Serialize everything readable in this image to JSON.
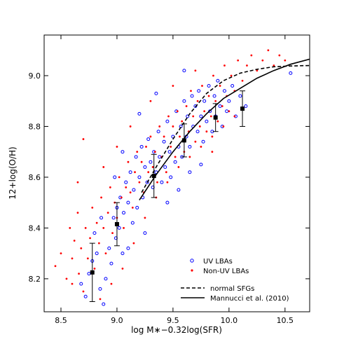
{
  "chart_data": {
    "type": "scatter",
    "xlabel": "log M∗−0.32log(SFR)",
    "ylabel": "12+log(O/H)",
    "xlim": [
      8.35,
      10.72
    ],
    "ylim": [
      8.07,
      9.16
    ],
    "x_ticks": [
      8.5,
      9.0,
      9.5,
      10.0,
      10.5
    ],
    "x_tick_labels": [
      "8.5",
      "9.0",
      "9.5",
      "10.0",
      "10.5"
    ],
    "y_ticks": [
      8.2,
      8.4,
      8.6,
      8.8,
      9.0
    ],
    "y_tick_labels": [
      "8.2",
      "8.4",
      "8.6",
      "8.8",
      "9.0"
    ],
    "grid": false,
    "legend_placement": "bottom-right",
    "series": [
      {
        "name": "UV LBAs",
        "kind": "scatter",
        "marker": "open-circle",
        "color": "#0000ff",
        "points": [
          [
            8.68,
            8.18
          ],
          [
            8.72,
            8.13
          ],
          [
            8.75,
            8.22
          ],
          [
            8.78,
            8.27
          ],
          [
            8.82,
            8.3
          ],
          [
            8.85,
            8.16
          ],
          [
            8.88,
            8.1
          ],
          [
            8.9,
            8.2
          ],
          [
            8.93,
            8.32
          ],
          [
            8.95,
            8.26
          ],
          [
            8.97,
            8.44
          ],
          [
            8.99,
            8.36
          ],
          [
            9.0,
            8.48
          ],
          [
            9.02,
            8.4
          ],
          [
            9.03,
            8.52
          ],
          [
            9.05,
            8.3
          ],
          [
            9.06,
            8.46
          ],
          [
            9.08,
            8.58
          ],
          [
            9.1,
            8.5
          ],
          [
            9.12,
            8.62
          ],
          [
            9.14,
            8.42
          ],
          [
            9.15,
            8.55
          ],
          [
            9.17,
            8.68
          ],
          [
            9.18,
            8.48
          ],
          [
            9.2,
            8.6
          ],
          [
            9.22,
            8.72
          ],
          [
            9.23,
            8.52
          ],
          [
            9.25,
            8.64
          ],
          [
            9.27,
            8.58
          ],
          [
            9.28,
            8.75
          ],
          [
            9.3,
            8.66
          ],
          [
            9.32,
            8.56
          ],
          [
            9.33,
            8.7
          ],
          [
            9.35,
            8.62
          ],
          [
            9.37,
            8.78
          ],
          [
            9.38,
            8.68
          ],
          [
            9.4,
            8.58
          ],
          [
            9.42,
            8.74
          ],
          [
            9.43,
            8.64
          ],
          [
            9.45,
            8.82
          ],
          [
            9.47,
            8.7
          ],
          [
            9.48,
            8.6
          ],
          [
            9.5,
            8.76
          ],
          [
            9.52,
            8.66
          ],
          [
            9.53,
            8.86
          ],
          [
            9.55,
            8.72
          ],
          [
            9.57,
            8.8
          ],
          [
            9.58,
            8.68
          ],
          [
            9.6,
            8.9
          ],
          [
            9.62,
            8.76
          ],
          [
            9.63,
            8.84
          ],
          [
            9.65,
            8.72
          ],
          [
            9.67,
            8.92
          ],
          [
            9.68,
            8.8
          ],
          [
            9.7,
            8.88
          ],
          [
            9.72,
            8.78
          ],
          [
            9.73,
            8.94
          ],
          [
            9.75,
            8.84
          ],
          [
            9.77,
            8.74
          ],
          [
            9.78,
            8.9
          ],
          [
            9.8,
            8.82
          ],
          [
            9.82,
            8.96
          ],
          [
            9.83,
            8.86
          ],
          [
            9.85,
            8.78
          ],
          [
            9.87,
            8.92
          ],
          [
            9.88,
            8.84
          ],
          [
            9.9,
            8.98
          ],
          [
            9.92,
            8.88
          ],
          [
            9.94,
            8.8
          ],
          [
            9.96,
            8.94
          ],
          [
            9.98,
            8.86
          ],
          [
            10.0,
            8.9
          ],
          [
            10.03,
            8.96
          ],
          [
            10.06,
            8.84
          ],
          [
            10.1,
            8.92
          ],
          [
            10.15,
            8.88
          ],
          [
            10.55,
            9.01
          ],
          [
            9.2,
            8.85
          ],
          [
            9.35,
            8.93
          ],
          [
            9.25,
            8.38
          ],
          [
            9.1,
            8.32
          ],
          [
            8.98,
            8.6
          ],
          [
            9.05,
            8.7
          ],
          [
            9.45,
            8.5
          ],
          [
            9.55,
            8.55
          ],
          [
            9.65,
            8.62
          ],
          [
            8.8,
            8.38
          ],
          [
            8.86,
            8.44
          ],
          [
            9.6,
            9.02
          ],
          [
            9.75,
            8.65
          ]
        ]
      },
      {
        "name": "Non-UV LBAs",
        "kind": "scatter",
        "marker": "dot",
        "color": "#ff0000",
        "points": [
          [
            8.45,
            8.25
          ],
          [
            8.5,
            8.3
          ],
          [
            8.55,
            8.2
          ],
          [
            8.58,
            8.4
          ],
          [
            8.6,
            8.28
          ],
          [
            8.62,
            8.35
          ],
          [
            8.65,
            8.46
          ],
          [
            8.66,
            8.22
          ],
          [
            8.68,
            8.32
          ],
          [
            8.7,
            8.75
          ],
          [
            8.72,
            8.4
          ],
          [
            8.74,
            8.28
          ],
          [
            8.76,
            8.36
          ],
          [
            8.78,
            8.48
          ],
          [
            8.8,
            8.24
          ],
          [
            8.82,
            8.42
          ],
          [
            8.84,
            8.34
          ],
          [
            8.86,
            8.52
          ],
          [
            8.88,
            8.4
          ],
          [
            8.9,
            8.3
          ],
          [
            8.92,
            8.46
          ],
          [
            8.94,
            8.56
          ],
          [
            8.96,
            8.38
          ],
          [
            8.98,
            8.5
          ],
          [
            9.0,
            8.44
          ],
          [
            9.02,
            8.6
          ],
          [
            9.04,
            8.52
          ],
          [
            9.06,
            8.4
          ],
          [
            9.08,
            8.56
          ],
          [
            9.1,
            8.66
          ],
          [
            9.12,
            8.54
          ],
          [
            9.14,
            8.48
          ],
          [
            9.16,
            8.62
          ],
          [
            9.18,
            8.7
          ],
          [
            9.2,
            8.58
          ],
          [
            9.22,
            8.66
          ],
          [
            9.24,
            8.54
          ],
          [
            9.26,
            8.72
          ],
          [
            9.28,
            8.62
          ],
          [
            9.3,
            8.76
          ],
          [
            9.32,
            8.64
          ],
          [
            9.34,
            8.7
          ],
          [
            9.36,
            8.58
          ],
          [
            9.38,
            8.8
          ],
          [
            9.4,
            8.68
          ],
          [
            9.42,
            8.76
          ],
          [
            9.44,
            8.62
          ],
          [
            9.46,
            8.84
          ],
          [
            9.48,
            8.72
          ],
          [
            9.5,
            8.8
          ],
          [
            9.52,
            8.68
          ],
          [
            9.54,
            8.86
          ],
          [
            9.56,
            8.76
          ],
          [
            9.58,
            8.82
          ],
          [
            9.6,
            8.7
          ],
          [
            9.62,
            8.88
          ],
          [
            9.64,
            8.78
          ],
          [
            9.66,
            8.94
          ],
          [
            9.68,
            8.84
          ],
          [
            9.7,
            8.74
          ],
          [
            9.72,
            8.9
          ],
          [
            9.74,
            8.8
          ],
          [
            9.76,
            8.96
          ],
          [
            9.78,
            8.86
          ],
          [
            9.8,
            8.78
          ],
          [
            9.82,
            8.92
          ],
          [
            9.84,
            8.84
          ],
          [
            9.86,
            9.0
          ],
          [
            9.88,
            8.9
          ],
          [
            9.9,
            8.82
          ],
          [
            9.92,
            8.96
          ],
          [
            9.94,
            8.88
          ],
          [
            9.96,
            9.04
          ],
          [
            9.98,
            8.92
          ],
          [
            10.0,
            8.86
          ],
          [
            10.02,
            9.0
          ],
          [
            10.05,
            8.94
          ],
          [
            10.08,
            9.06
          ],
          [
            10.12,
            8.98
          ],
          [
            10.16,
            9.04
          ],
          [
            10.2,
            9.08
          ],
          [
            10.25,
            9.02
          ],
          [
            10.3,
            9.06
          ],
          [
            10.35,
            9.1
          ],
          [
            10.4,
            9.04
          ],
          [
            10.45,
            9.08
          ],
          [
            10.5,
            9.06
          ],
          [
            8.6,
            8.18
          ],
          [
            8.7,
            8.15
          ],
          [
            8.85,
            8.12
          ],
          [
            8.95,
            8.18
          ],
          [
            9.05,
            8.24
          ],
          [
            9.15,
            8.34
          ],
          [
            9.25,
            8.44
          ],
          [
            9.35,
            8.52
          ],
          [
            9.45,
            8.58
          ],
          [
            9.55,
            8.64
          ],
          [
            9.65,
            8.68
          ],
          [
            9.75,
            8.72
          ],
          [
            9.85,
            8.76
          ],
          [
            9.95,
            8.8
          ],
          [
            10.05,
            8.84
          ],
          [
            8.88,
            8.64
          ],
          [
            9.0,
            8.72
          ],
          [
            9.12,
            8.8
          ],
          [
            9.3,
            8.9
          ],
          [
            9.5,
            8.96
          ],
          [
            9.7,
            9.02
          ],
          [
            8.65,
            8.58
          ],
          [
            9.85,
            8.7
          ]
        ]
      },
      {
        "name": "",
        "kind": "errorbar",
        "color": "#000000",
        "points": [
          {
            "x": 8.78,
            "y": 8.225,
            "ylo": 8.11,
            "yhi": 8.34
          },
          {
            "x": 9.0,
            "y": 8.415,
            "ylo": 8.33,
            "yhi": 8.5
          },
          {
            "x": 9.33,
            "y": 8.605,
            "ylo": 8.52,
            "yhi": 8.69
          },
          {
            "x": 9.6,
            "y": 8.745,
            "ylo": 8.68,
            "yhi": 8.81
          },
          {
            "x": 9.88,
            "y": 8.835,
            "ylo": 8.78,
            "yhi": 8.89
          },
          {
            "x": 10.12,
            "y": 8.87,
            "ylo": 8.8,
            "yhi": 8.94
          }
        ]
      },
      {
        "name": "normal SFGs",
        "kind": "line",
        "dash": "dashed",
        "color": "#000000",
        "points": [
          [
            9.22,
            8.54
          ],
          [
            9.35,
            8.64
          ],
          [
            9.5,
            8.75
          ],
          [
            9.65,
            8.85
          ],
          [
            9.8,
            8.93
          ],
          [
            9.95,
            8.98
          ],
          [
            10.1,
            9.01
          ],
          [
            10.25,
            9.025
          ],
          [
            10.4,
            9.035
          ],
          [
            10.55,
            9.038
          ],
          [
            10.72,
            9.04
          ]
        ]
      },
      {
        "name": "Mannucci et al. (2010)",
        "kind": "line",
        "dash": "solid",
        "color": "#000000",
        "points": [
          [
            9.2,
            8.51
          ],
          [
            9.35,
            8.61
          ],
          [
            9.5,
            8.7
          ],
          [
            9.65,
            8.78
          ],
          [
            9.8,
            8.85
          ],
          [
            9.95,
            8.91
          ],
          [
            10.1,
            8.95
          ],
          [
            10.25,
            8.99
          ],
          [
            10.4,
            9.02
          ],
          [
            10.55,
            9.045
          ],
          [
            10.72,
            9.065
          ]
        ]
      }
    ],
    "legend": {
      "entries": [
        "UV LBAs",
        "Non-UV LBAs",
        "normal SFGs",
        "Mannucci et al. (2010)"
      ]
    }
  }
}
